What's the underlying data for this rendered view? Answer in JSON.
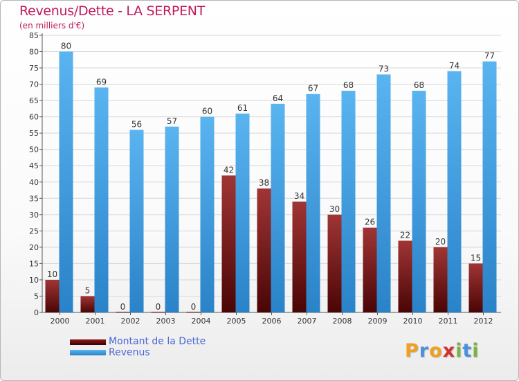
{
  "title": "Revenus/Dette - LA SERPENT",
  "subtitle": "(en milliers d'€)",
  "colors": {
    "title": "#c2185b",
    "dette": "#8b2a2a",
    "revenus": "#4aa3e6",
    "legend_text": "#4a66d6"
  },
  "legend": [
    {
      "label": "Montant de la Dette",
      "color": "#6b0f0f"
    },
    {
      "label": "Revenus",
      "color": "#3a96e0"
    }
  ],
  "logo": {
    "text": "Proxiti",
    "letters": [
      {
        "ch": "P",
        "color": "#f0a020"
      },
      {
        "ch": "r",
        "color": "#4a90e2"
      },
      {
        "ch": "o",
        "color": "#f0a020"
      },
      {
        "ch": "x",
        "color": "#d32f2f"
      },
      {
        "ch": "i",
        "color": "#7cb342"
      },
      {
        "ch": "t",
        "color": "#4a90e2"
      },
      {
        "ch": "i",
        "color": "#7cb342"
      }
    ]
  },
  "chart_data": {
    "type": "bar",
    "title": "Revenus/Dette - LA SERPENT",
    "subtitle": "(en milliers d'€)",
    "categories": [
      "2000",
      "2001",
      "2002",
      "2003",
      "2004",
      "2005",
      "2006",
      "2007",
      "2008",
      "2009",
      "2010",
      "2011",
      "2012"
    ],
    "series": [
      {
        "name": "Montant de la Dette",
        "values": [
          10,
          5,
          0,
          0,
          0,
          42,
          38,
          34,
          30,
          26,
          22,
          20,
          15
        ],
        "color": "#8b2a2a"
      },
      {
        "name": "Revenus",
        "values": [
          80,
          69,
          56,
          57,
          60,
          61,
          64,
          67,
          68,
          73,
          68,
          74,
          77
        ],
        "color": "#4aa3e6"
      }
    ],
    "ylim": [
      0,
      85
    ],
    "yticks": [
      0,
      5,
      10,
      15,
      20,
      25,
      30,
      35,
      40,
      45,
      50,
      55,
      60,
      65,
      70,
      75,
      80,
      85
    ],
    "grid": true,
    "legend_position": "bottom-left"
  }
}
